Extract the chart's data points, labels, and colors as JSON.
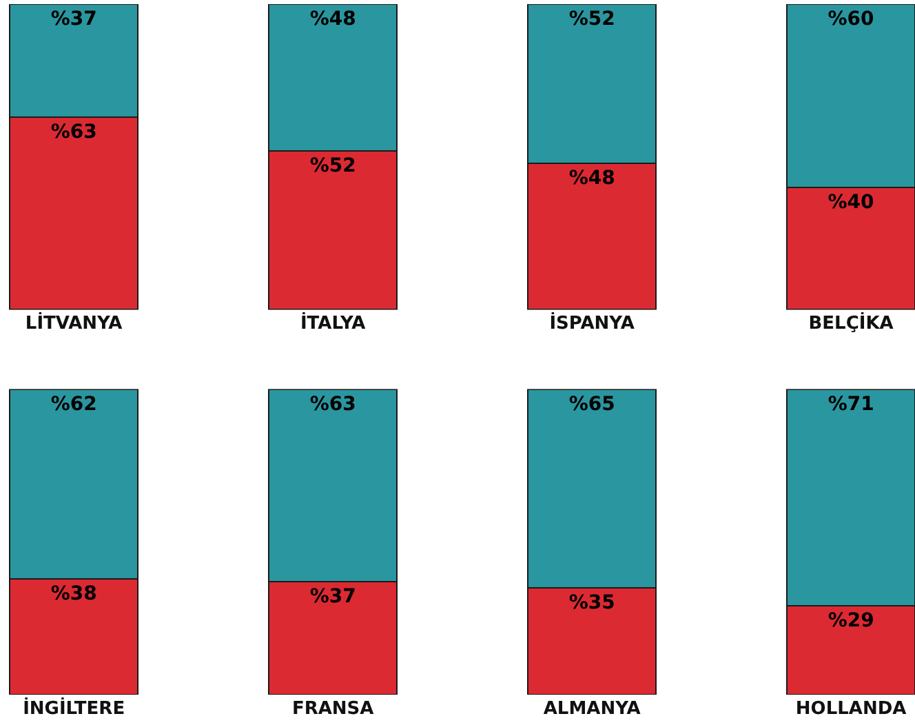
{
  "chart_data": [
    {
      "type": "bar",
      "stacked": true,
      "categories": [
        "LİTVANYA",
        "İTALYA",
        "İSPANYA",
        "BELÇİKA"
      ],
      "ylim": [
        0,
        100
      ],
      "tick_labels": "x",
      "series": [
        {
          "color": "#dc2a33",
          "values": [
            63,
            52,
            48,
            40
          ],
          "value_labels": [
            "%63",
            "%52",
            "%48",
            "%40"
          ]
        },
        {
          "color": "#2a96a0",
          "values": [
            37,
            48,
            52,
            60
          ],
          "value_labels": [
            "%37",
            "%48",
            "%52",
            "%60"
          ]
        }
      ]
    },
    {
      "type": "bar",
      "stacked": true,
      "categories": [
        "İNGİLTERE",
        "FRANSA",
        "ALMANYA",
        "HOLLANDA"
      ],
      "ylim": [
        0,
        100
      ],
      "tick_labels": "x",
      "series": [
        {
          "color": "#dc2a33",
          "values": [
            38,
            37,
            35,
            29
          ],
          "value_labels": [
            "%38",
            "%37",
            "%35",
            "%29"
          ]
        },
        {
          "color": "#2a96a0",
          "values": [
            62,
            63,
            65,
            71
          ],
          "value_labels": [
            "%62",
            "%63",
            "%65",
            "%71"
          ]
        }
      ]
    }
  ]
}
